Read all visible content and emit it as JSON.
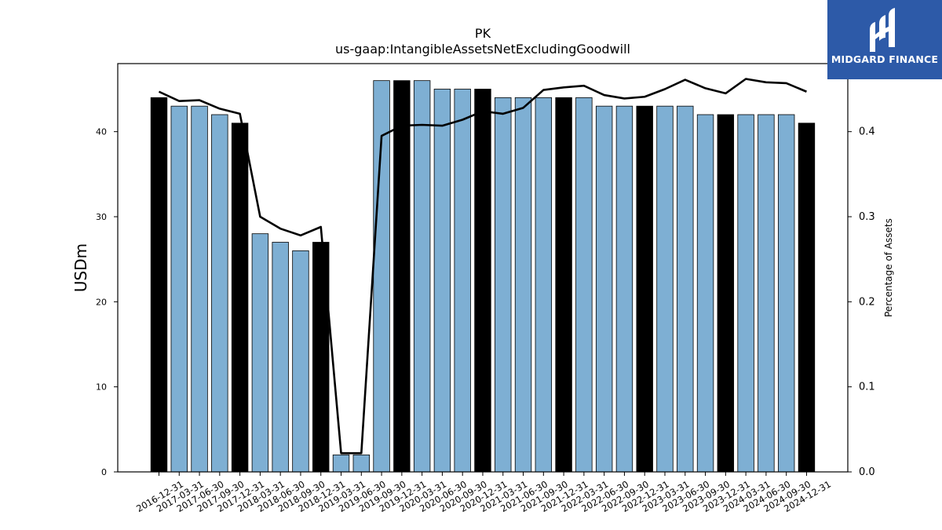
{
  "brand": {
    "name": "MIDGARD FINANCE",
    "bg_color": "#2d5aa8",
    "icon": "midgard-m-icon"
  },
  "chart_data": {
    "type": "bar",
    "title": "PK",
    "subtitle": "us-gaap:IntangibleAssetsNetExcludingGoodwill",
    "ylabel": "USDm",
    "y2label": "Percentage of Assets",
    "ylim": [
      0,
      48
    ],
    "y2lim": [
      0,
      0.48
    ],
    "yticks": [
      0,
      10,
      20,
      30,
      40
    ],
    "y2ticks": [
      0.0,
      0.1,
      0.2,
      0.3,
      0.4
    ],
    "grid": false,
    "bar_color_quarter": "#7eafd3",
    "bar_color_year_end": "#000000",
    "line_color": "#000000",
    "categories": [
      "2016-12-31",
      "2017-03-31",
      "2017-06-30",
      "2017-09-30",
      "2017-12-31",
      "2018-03-31",
      "2018-06-30",
      "2018-09-30",
      "2018-12-31",
      "2019-03-31",
      "2019-06-30",
      "2019-09-30",
      "2019-12-31",
      "2020-03-31",
      "2020-06-30",
      "2020-09-30",
      "2020-12-31",
      "2021-03-31",
      "2021-06-30",
      "2021-09-30",
      "2021-12-31",
      "2022-03-31",
      "2022-06-30",
      "2022-09-30",
      "2022-12-31",
      "2023-03-31",
      "2023-06-30",
      "2023-09-30",
      "2023-12-31",
      "2024-03-31",
      "2024-06-30",
      "2024-09-30",
      "2024-12-31"
    ],
    "series": [
      {
        "type": "bar",
        "values": [
          44,
          43,
          43,
          42,
          41,
          28,
          27,
          26,
          27,
          2,
          2,
          46,
          46,
          46,
          45,
          45,
          45,
          44,
          44,
          44,
          44,
          44,
          43,
          43,
          43,
          43,
          43,
          42,
          42,
          42,
          42,
          42,
          41
        ],
        "year_end": [
          true,
          false,
          false,
          false,
          true,
          false,
          false,
          false,
          true,
          false,
          false,
          false,
          true,
          false,
          false,
          false,
          true,
          false,
          false,
          false,
          true,
          false,
          false,
          false,
          true,
          false,
          false,
          false,
          true,
          false,
          false,
          false,
          true
        ]
      },
      {
        "type": "line",
        "axis": "right",
        "values": [
          0.447,
          0.436,
          0.437,
          0.427,
          0.421,
          0.3,
          0.286,
          0.278,
          0.288,
          0.022,
          0.022,
          0.395,
          0.407,
          0.408,
          0.407,
          0.414,
          0.424,
          0.421,
          0.428,
          0.449,
          0.452,
          0.454,
          0.443,
          0.439,
          0.441,
          0.45,
          0.461,
          0.451,
          0.445,
          0.462,
          0.458,
          0.457,
          0.447
        ]
      }
    ]
  }
}
